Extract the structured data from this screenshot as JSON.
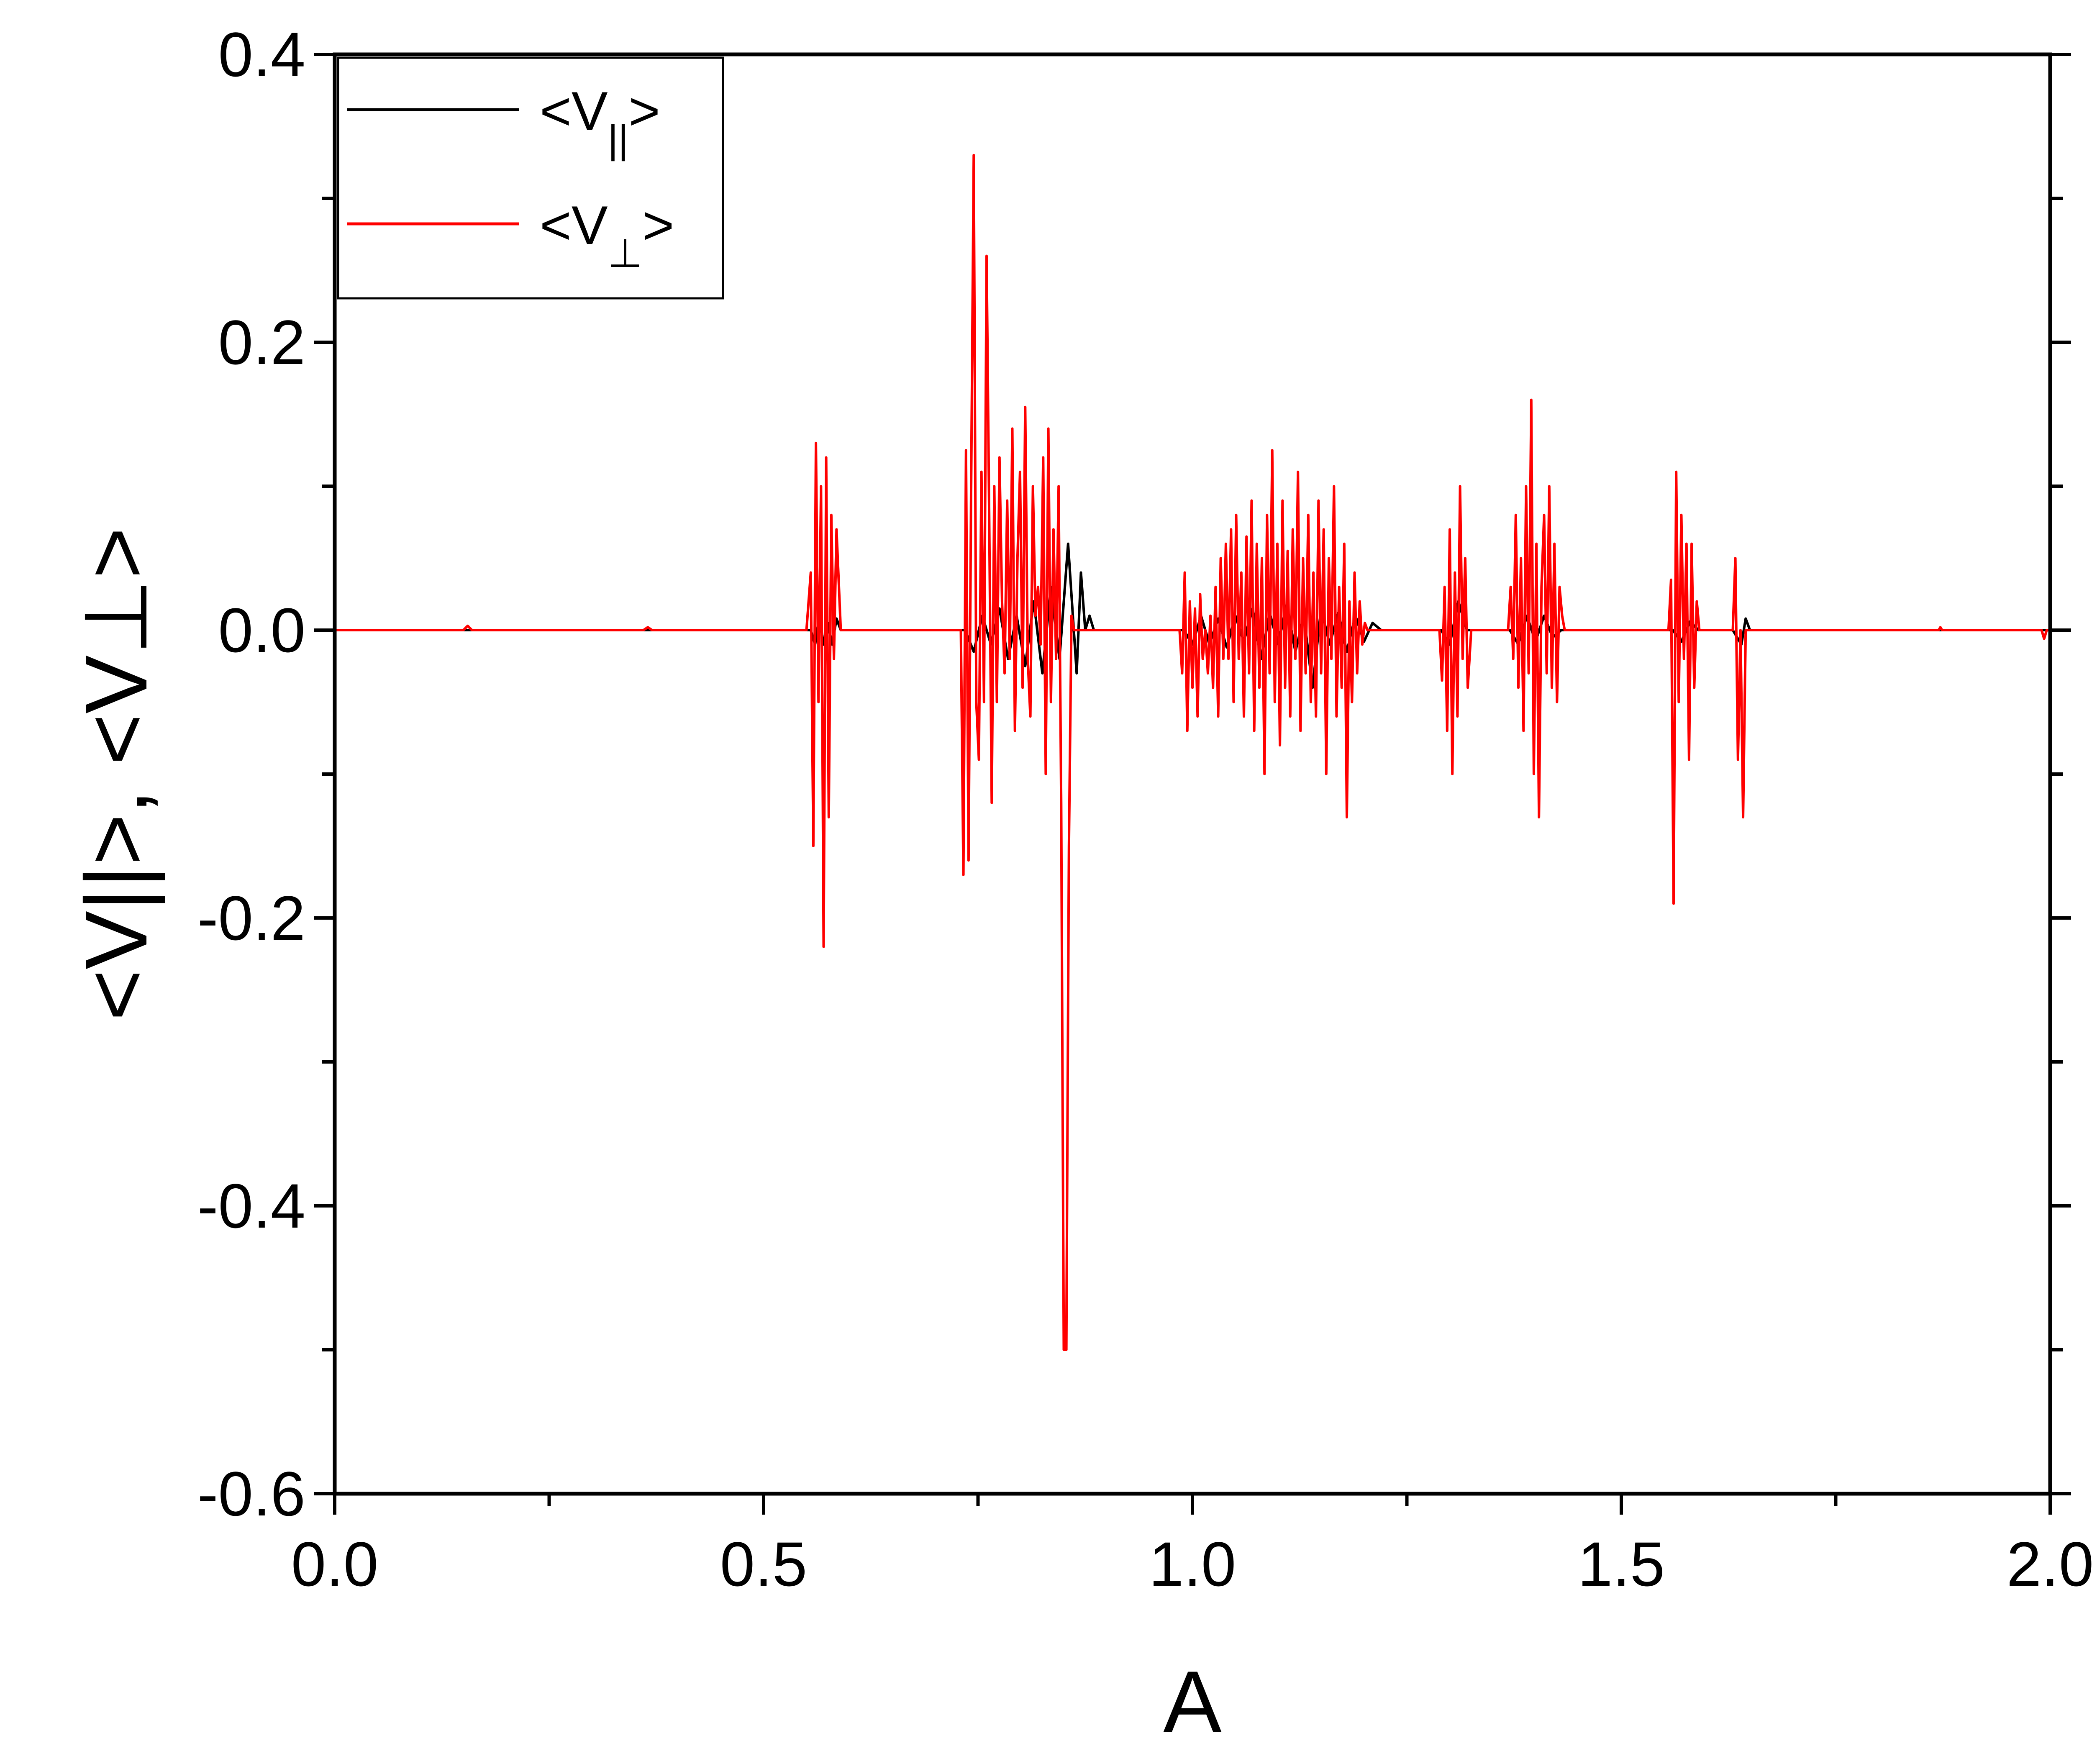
{
  "chart_data": {
    "type": "line",
    "xlabel": "A",
    "ylabel": "<V||>, <V⊥>",
    "xlim": [
      0.0,
      2.0
    ],
    "ylim": [
      -0.6,
      0.4
    ],
    "x_ticks": [
      "0.0",
      "0.5",
      "1.0",
      "1.5",
      "2.0"
    ],
    "x_tick_values": [
      0.0,
      0.5,
      1.0,
      1.5,
      2.0
    ],
    "y_ticks": [
      "0.4",
      "0.2",
      "0.0",
      "-0.2",
      "-0.4",
      "-0.6"
    ],
    "y_tick_values": [
      0.4,
      0.2,
      0.0,
      -0.2,
      -0.4,
      -0.6
    ],
    "grid": false,
    "legend_position": "top-left",
    "legend": [
      {
        "lt": "<V",
        "sub": "||",
        "gt": ">",
        "color": "#000000"
      },
      {
        "lt": "<V",
        "sub": "⊥",
        "gt": ">",
        "color": "#ff0000"
      }
    ],
    "series": [
      {
        "color": "#000000",
        "x": [
          0.0,
          0.555,
          0.56,
          0.565,
          0.57,
          0.575,
          0.58,
          0.585,
          0.59,
          0.735,
          0.745,
          0.755,
          0.765,
          0.775,
          0.785,
          0.795,
          0.805,
          0.815,
          0.825,
          0.835,
          0.845,
          0.855,
          0.865,
          0.87,
          0.875,
          0.88,
          0.885,
          0.885,
          0.99,
          1.0,
          1.01,
          1.02,
          1.03,
          1.04,
          1.05,
          1.06,
          1.07,
          1.08,
          1.09,
          1.1,
          1.11,
          1.12,
          1.13,
          1.14,
          1.15,
          1.16,
          1.17,
          1.18,
          1.19,
          1.2,
          1.21,
          1.22,
          1.29,
          1.3,
          1.31,
          1.32,
          1.37,
          1.38,
          1.39,
          1.4,
          1.41,
          1.42,
          1.43,
          1.56,
          1.57,
          1.58,
          1.59,
          1.63,
          1.64,
          1.645,
          1.65,
          2.0
        ],
        "y": [
          0.0,
          0.0,
          -0.01,
          0.01,
          -0.01,
          0.005,
          -0.01,
          0.008,
          0.0,
          0.0,
          -0.015,
          0.01,
          -0.01,
          0.015,
          -0.02,
          0.01,
          -0.025,
          0.02,
          -0.03,
          0.03,
          -0.02,
          0.06,
          -0.03,
          0.04,
          0.0,
          0.01,
          0.0,
          0.0,
          0.0,
          -0.01,
          0.01,
          -0.01,
          0.008,
          -0.012,
          0.01,
          -0.008,
          0.015,
          -0.02,
          0.012,
          -0.01,
          0.018,
          -0.015,
          0.01,
          -0.04,
          0.015,
          -0.01,
          0.012,
          -0.015,
          0.01,
          -0.008,
          0.005,
          0.0,
          0.0,
          -0.01,
          0.02,
          0.0,
          0.0,
          -0.01,
          0.01,
          -0.008,
          0.01,
          -0.005,
          0.0,
          0.0,
          -0.008,
          0.006,
          0.0,
          0.0,
          -0.01,
          0.008,
          0.0,
          0.0
        ]
      },
      {
        "color": "#ff0000",
        "x": [
          0.0,
          0.15,
          0.155,
          0.16,
          0.36,
          0.365,
          0.37,
          0.55,
          0.555,
          0.558,
          0.561,
          0.564,
          0.567,
          0.57,
          0.573,
          0.576,
          0.579,
          0.582,
          0.585,
          0.59,
          0.59,
          0.73,
          0.733,
          0.736,
          0.739,
          0.742,
          0.745,
          0.748,
          0.751,
          0.754,
          0.757,
          0.76,
          0.763,
          0.766,
          0.769,
          0.772,
          0.775,
          0.778,
          0.781,
          0.784,
          0.787,
          0.79,
          0.793,
          0.796,
          0.799,
          0.802,
          0.805,
          0.808,
          0.811,
          0.814,
          0.817,
          0.82,
          0.823,
          0.826,
          0.829,
          0.832,
          0.835,
          0.838,
          0.841,
          0.844,
          0.847,
          0.85,
          0.853,
          0.856,
          0.859,
          0.862,
          0.865,
          0.868,
          0.871,
          0.874,
          0.877,
          0.88,
          0.883,
          0.886,
          0.89,
          0.985,
          0.988,
          0.991,
          0.994,
          0.997,
          1.0,
          1.003,
          1.006,
          1.009,
          1.012,
          1.015,
          1.018,
          1.021,
          1.024,
          1.027,
          1.03,
          1.033,
          1.036,
          1.039,
          1.042,
          1.045,
          1.048,
          1.051,
          1.054,
          1.057,
          1.06,
          1.063,
          1.066,
          1.069,
          1.072,
          1.075,
          1.078,
          1.081,
          1.084,
          1.087,
          1.09,
          1.093,
          1.096,
          1.099,
          1.102,
          1.105,
          1.108,
          1.111,
          1.114,
          1.117,
          1.12,
          1.123,
          1.126,
          1.129,
          1.132,
          1.135,
          1.138,
          1.141,
          1.144,
          1.147,
          1.15,
          1.153,
          1.156,
          1.159,
          1.162,
          1.165,
          1.168,
          1.171,
          1.174,
          1.177,
          1.18,
          1.183,
          1.186,
          1.189,
          1.192,
          1.195,
          1.198,
          1.201,
          1.204,
          1.207,
          1.21,
          1.213,
          1.216,
          1.22,
          1.285,
          1.288,
          1.291,
          1.294,
          1.297,
          1.3,
          1.303,
          1.306,
          1.309,
          1.312,
          1.315,
          1.318,
          1.321,
          1.325,
          1.365,
          1.368,
          1.371,
          1.374,
          1.377,
          1.38,
          1.383,
          1.386,
          1.389,
          1.392,
          1.395,
          1.398,
          1.401,
          1.404,
          1.407,
          1.41,
          1.413,
          1.416,
          1.419,
          1.422,
          1.425,
          1.428,
          1.431,
          1.434,
          1.437,
          1.44,
          1.555,
          1.558,
          1.561,
          1.564,
          1.567,
          1.57,
          1.573,
          1.576,
          1.579,
          1.582,
          1.585,
          1.588,
          1.591,
          1.595,
          1.63,
          1.633,
          1.636,
          1.639,
          1.642,
          1.645,
          1.65,
          1.87,
          1.872,
          1.874,
          1.99,
          1.993,
          1.996,
          2.0
        ],
        "y": [
          0.0,
          0.0,
          0.003,
          0.0,
          0.0,
          0.002,
          0.0,
          0.0,
          0.04,
          -0.15,
          0.13,
          -0.05,
          0.1,
          -0.22,
          0.12,
          -0.13,
          0.08,
          -0.02,
          0.07,
          0.0,
          0.0,
          0.0,
          -0.17,
          0.125,
          -0.16,
          0.1,
          0.33,
          -0.05,
          -0.09,
          0.11,
          -0.05,
          0.26,
          0.08,
          -0.12,
          0.1,
          -0.05,
          0.12,
          0.02,
          -0.03,
          0.09,
          -0.02,
          0.14,
          -0.07,
          0.05,
          0.11,
          -0.04,
          0.155,
          -0.02,
          -0.06,
          0.1,
          0.01,
          0.03,
          -0.01,
          0.12,
          -0.1,
          0.14,
          -0.05,
          0.07,
          -0.02,
          0.1,
          -0.12,
          -0.5,
          -0.5,
          -0.15,
          0.01,
          0.0,
          0.0,
          0.0,
          0.0,
          0.0,
          0.0,
          0.0,
          0.0,
          0.0,
          0.0,
          0.0,
          -0.03,
          0.04,
          -0.07,
          0.02,
          -0.04,
          0.015,
          -0.06,
          0.025,
          -0.02,
          0.0,
          -0.03,
          0.01,
          -0.04,
          0.03,
          -0.06,
          0.05,
          -0.02,
          0.06,
          -0.02,
          0.07,
          -0.05,
          0.08,
          -0.02,
          0.04,
          -0.06,
          0.065,
          -0.03,
          0.09,
          -0.07,
          0.06,
          -0.04,
          0.05,
          -0.1,
          0.08,
          -0.03,
          0.125,
          -0.05,
          0.06,
          -0.08,
          0.09,
          -0.04,
          0.055,
          -0.06,
          0.07,
          -0.02,
          0.11,
          -0.07,
          0.05,
          -0.03,
          0.08,
          -0.05,
          0.04,
          -0.06,
          0.09,
          -0.03,
          0.07,
          -0.1,
          0.05,
          -0.02,
          0.1,
          -0.06,
          0.03,
          -0.04,
          0.06,
          -0.13,
          0.02,
          -0.05,
          0.04,
          -0.03,
          0.02,
          -0.01,
          0.005,
          0.0,
          0.0,
          0.0,
          0.0,
          0.0,
          0.0,
          0.0,
          0.0,
          -0.035,
          0.03,
          -0.07,
          0.07,
          -0.1,
          0.04,
          -0.06,
          0.1,
          -0.02,
          0.05,
          -0.04,
          0.0,
          0.0,
          0.0,
          0.03,
          -0.02,
          0.08,
          -0.04,
          0.05,
          -0.07,
          0.1,
          -0.03,
          0.16,
          -0.1,
          0.06,
          -0.13,
          0.03,
          0.08,
          -0.03,
          0.1,
          -0.04,
          0.06,
          -0.05,
          0.03,
          0.01,
          0.0,
          0.0,
          0.0,
          0.0,
          0.035,
          -0.19,
          0.11,
          -0.05,
          0.08,
          -0.02,
          0.06,
          -0.09,
          0.06,
          -0.04,
          0.02,
          0.0,
          0.0,
          0.0,
          0.05,
          -0.09,
          0.0,
          -0.13,
          0.0,
          0.0,
          0.0,
          0.002,
          0.0,
          0.0,
          -0.006,
          0.0,
          0.0
        ]
      }
    ]
  }
}
